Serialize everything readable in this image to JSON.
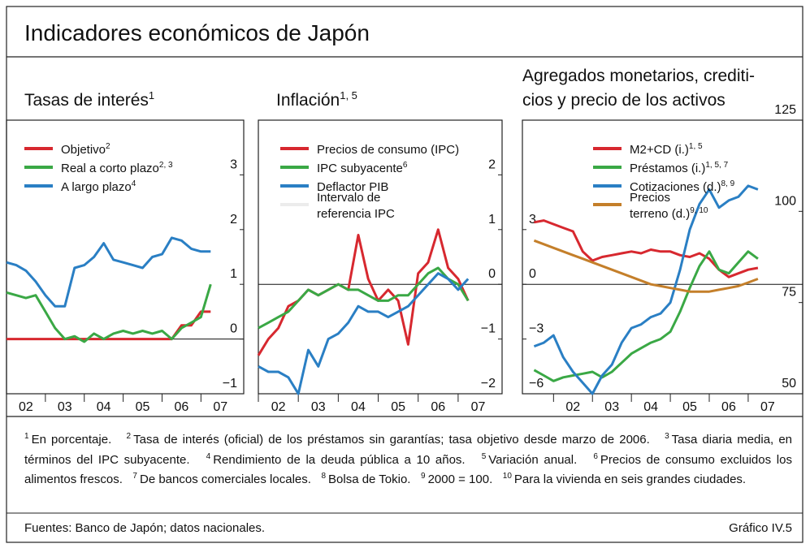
{
  "header": {
    "title": "Indicadores económicos de Japón"
  },
  "chart_data": [
    {
      "type": "line",
      "title": [
        "Tasas de interés"
      ],
      "title_sup": "1",
      "x": [
        2002,
        2002.25,
        2002.5,
        2002.75,
        2003,
        2003.25,
        2003.5,
        2003.75,
        2004,
        2004.25,
        2004.5,
        2004.75,
        2005,
        2005.25,
        2005.5,
        2005.75,
        2006,
        2006.25,
        2006.5,
        2006.75,
        2007,
        2007.25
      ],
      "xlim": [
        2002,
        2008.1
      ],
      "xticks": [
        {
          "value": 2002,
          "label": "02"
        },
        {
          "value": 2003,
          "label": "03"
        },
        {
          "value": 2004,
          "label": "04"
        },
        {
          "value": 2005,
          "label": "05"
        },
        {
          "value": 2006,
          "label": "06"
        },
        {
          "value": 2007,
          "label": "07"
        }
      ],
      "ylim": [
        -1,
        4
      ],
      "yticks": [
        {
          "value": -1,
          "label": "−1"
        },
        0,
        1,
        2,
        3
      ],
      "series": [
        {
          "name": [
            "Objetivo"
          ],
          "sup": "2",
          "color": "#d7282f",
          "values": [
            0,
            0,
            0,
            0,
            0,
            0,
            0,
            0,
            0,
            0,
            0,
            0,
            0,
            0,
            0,
            0,
            0,
            0,
            0.25,
            0.25,
            0.5,
            0.5
          ]
        },
        {
          "name": [
            "Real a corto plazo"
          ],
          "sup": "2, 3",
          "color": "#3aa845",
          "values": [
            0.85,
            0.8,
            0.75,
            0.8,
            0.5,
            0.2,
            0.0,
            0.05,
            -0.05,
            0.1,
            0.0,
            0.1,
            0.15,
            0.1,
            0.15,
            0.1,
            0.15,
            0.0,
            0.2,
            0.3,
            0.4,
            1.0
          ]
        },
        {
          "name": [
            "A largo plazo"
          ],
          "sup": "4",
          "color": "#2a7fc4",
          "values": [
            1.4,
            1.35,
            1.25,
            1.05,
            0.8,
            0.6,
            0.6,
            1.3,
            1.35,
            1.5,
            1.75,
            1.45,
            1.4,
            1.35,
            1.3,
            1.5,
            1.55,
            1.85,
            1.8,
            1.65,
            1.6,
            1.6
          ]
        }
      ]
    },
    {
      "type": "line",
      "title": [
        "Inflación"
      ],
      "title_sup": "1, 5",
      "x": [
        2002,
        2002.25,
        2002.5,
        2002.75,
        2003,
        2003.25,
        2003.5,
        2003.75,
        2004,
        2004.25,
        2004.5,
        2004.75,
        2005,
        2005.25,
        2005.5,
        2005.75,
        2006,
        2006.25,
        2006.5,
        2006.75,
        2007,
        2007.25
      ],
      "xlim": [
        2002,
        2008.1
      ],
      "xticks": [
        {
          "value": 2002,
          "label": "02"
        },
        {
          "value": 2003,
          "label": "03"
        },
        {
          "value": 2004,
          "label": "04"
        },
        {
          "value": 2005,
          "label": "05"
        },
        {
          "value": 2006,
          "label": "06"
        },
        {
          "value": 2007,
          "label": "07"
        }
      ],
      "ylim": [
        -2,
        3
      ],
      "yticks": [
        {
          "value": -2,
          "label": "−2"
        },
        {
          "value": -1,
          "label": "−1"
        },
        0,
        1,
        2
      ],
      "series": [
        {
          "name": [
            "Precios de consumo (IPC)"
          ],
          "color": "#d7282f",
          "values": [
            -1.3,
            -1.0,
            -0.8,
            -0.4,
            -0.3,
            -0.1,
            -0.2,
            -0.1,
            0.0,
            -0.1,
            0.9,
            0.1,
            -0.3,
            -0.1,
            -0.3,
            -1.1,
            0.2,
            0.4,
            1.0,
            0.3,
            0.1,
            -0.3
          ]
        },
        {
          "name": [
            "IPC subyacente"
          ],
          "sup": "6",
          "color": "#3aa845",
          "values": [
            -0.8,
            -0.7,
            -0.6,
            -0.5,
            -0.3,
            -0.1,
            -0.2,
            -0.1,
            0.0,
            -0.1,
            -0.1,
            -0.2,
            -0.3,
            -0.3,
            -0.2,
            -0.2,
            0.0,
            0.2,
            0.3,
            0.1,
            0.0,
            -0.3
          ]
        },
        {
          "name": [
            "Deflactor PIB"
          ],
          "color": "#2a7fc4",
          "values": [
            -1.5,
            -1.6,
            -1.6,
            -1.7,
            -2.0,
            -1.2,
            -1.5,
            -1.0,
            -0.9,
            -0.7,
            -0.4,
            -0.5,
            -0.5,
            -0.6,
            -0.5,
            -0.4,
            -0.2,
            0.0,
            0.2,
            0.1,
            -0.1,
            0.1
          ]
        },
        {
          "name": [
            "Intervalo de",
            "referencia IPC"
          ],
          "color": "#ececec"
        }
      ]
    },
    {
      "type": "line",
      "title": [
        "Agregados monetarios, crediti-",
        "cios y precio de los activos"
      ],
      "x": [
        2001.5,
        2001.75,
        2002,
        2002.25,
        2002.5,
        2002.75,
        2003,
        2003.25,
        2003.5,
        2003.75,
        2004,
        2004.25,
        2004.5,
        2004.75,
        2005,
        2005.25,
        2005.5,
        2005.75,
        2006,
        2006.25,
        2006.5,
        2006.75,
        2007,
        2007.25
      ],
      "xlim": [
        2001.2,
        2008.4
      ],
      "xticks": [
        {
          "value": 2002,
          "label": "02"
        },
        {
          "value": 2003,
          "label": "03"
        },
        {
          "value": 2004,
          "label": "04"
        },
        {
          "value": 2005,
          "label": "05"
        },
        {
          "value": 2006,
          "label": "06"
        },
        {
          "value": 2007,
          "label": "07"
        }
      ],
      "ylim": [
        -6,
        9
      ],
      "yticks": [
        {
          "value": -6,
          "label": "−6"
        },
        {
          "value": -3,
          "label": "−3"
        },
        0,
        3
      ],
      "y2lim": [
        50,
        125
      ],
      "y2ticks": [
        50,
        75,
        100,
        125
      ],
      "series": [
        {
          "name": [
            "M2+CD (i.)"
          ],
          "sup": "1, 5",
          "color": "#d7282f",
          "values": [
            3.4,
            3.5,
            3.3,
            3.1,
            2.9,
            1.8,
            1.3,
            1.5,
            1.6,
            1.7,
            1.8,
            1.7,
            1.9,
            1.8,
            1.8,
            1.6,
            1.5,
            1.7,
            1.4,
            0.8,
            0.4,
            0.6,
            0.8,
            0.9
          ]
        },
        {
          "name": [
            "Préstamos (i.)"
          ],
          "sup": "1, 5, 7",
          "color": "#3aa845",
          "values": [
            -4.7,
            -5.0,
            -5.3,
            -5.1,
            -5.0,
            -4.9,
            -4.8,
            -5.1,
            -4.8,
            -4.3,
            -3.8,
            -3.5,
            -3.2,
            -3.0,
            -2.6,
            -1.5,
            -0.2,
            1.0,
            1.8,
            0.8,
            0.6,
            1.2,
            1.8,
            1.4
          ]
        },
        {
          "name": [
            "Cotizaciones (d.)"
          ],
          "sup": "8, 9",
          "color": "#2a7fc4",
          "axis": "y2",
          "values": [
            63,
            64,
            66,
            60,
            56,
            53,
            50,
            55,
            58,
            64,
            68,
            69,
            71,
            72,
            75,
            84,
            95,
            102,
            106,
            101,
            103,
            104,
            107,
            106
          ]
        },
        {
          "name": [
            "Precios",
            "terreno (d.)"
          ],
          "sup": "9, 10",
          "color": "#c47f2a",
          "axis": "y2",
          "values": [
            92,
            91,
            90,
            89,
            88,
            87,
            86,
            85,
            84,
            83,
            82,
            81,
            80,
            79.5,
            79,
            78.5,
            78,
            78,
            78,
            78.5,
            79,
            79.5,
            80.5,
            81.5
          ]
        }
      ]
    }
  ],
  "footnotes": [
    {
      "number": "1",
      "text": "En porcentaje."
    },
    {
      "number": "2",
      "text": "Tasa de interés (oficial) de los préstamos sin garantías; tasa objetivo desde marzo de 2006."
    },
    {
      "number": "3",
      "text": "Tasa diaria media, en términos del IPC subyacente."
    },
    {
      "number": "4",
      "text": "Rendimiento de la deuda pública a 10 años."
    },
    {
      "number": "5",
      "text": "Variación anual."
    },
    {
      "number": "6",
      "text": "Precios de consumo excluidos los alimentos frescos."
    },
    {
      "number": "7",
      "text": "De bancos comerciales locales."
    },
    {
      "number": "8",
      "text": "Bolsa de Tokio."
    },
    {
      "number": "9",
      "text": "2000 = 100."
    },
    {
      "number": "10",
      "text": "Para la vivienda en seis grandes ciudades."
    }
  ],
  "sources": "Fuentes: Banco de Japón; datos nacionales.",
  "figure_label": "Gráfico IV.5"
}
